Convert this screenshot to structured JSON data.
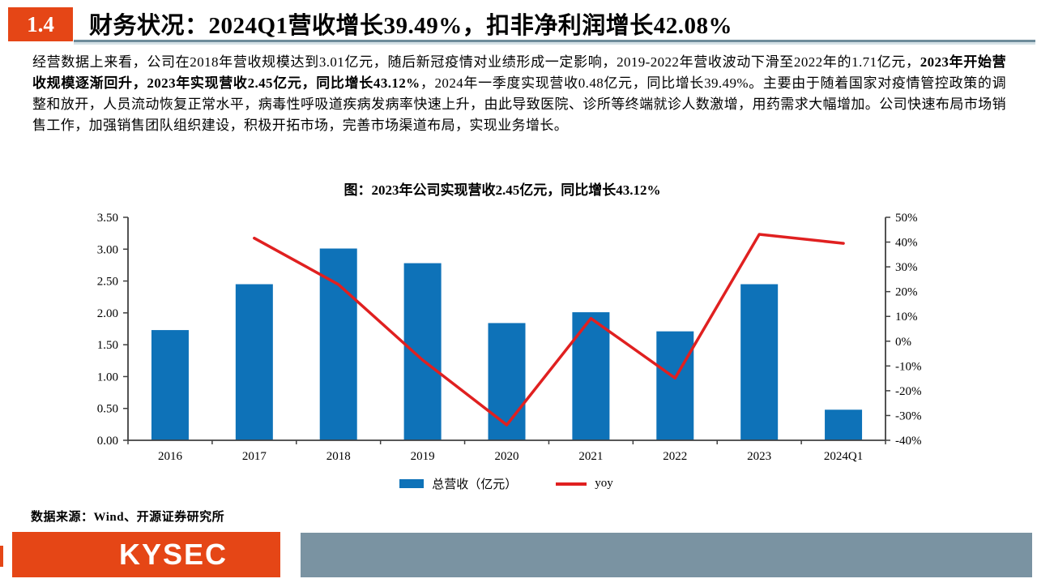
{
  "header": {
    "section_number": "1.4",
    "title": "财务状况：2024Q1营收增长39.49%，扣非净利润增长42.08%"
  },
  "body": {
    "part1": "经营数据上来看，公司在2018年营收规模达到3.01亿元，随后新冠疫情对业绩形成一定影响，2019-2022年营收波动下滑至2022年的1.71亿元，",
    "part2_bold": "2023年开始营收规模逐渐回升，2023年实现营收2.45亿元，同比增长43.12%",
    "part3": "，2024年一季度实现营收0.48亿元，同比增长39.49%。主要由于随着国家对疫情管控政策的调整和放开，人员流动恢复正常水平，病毒性呼吸道疾病发病率快速上升，由此导致医院、诊所等终端就诊人数激增，用药需求大幅增加。公司快速布局市场销售工作，加强销售团队组织建设，积极开拓市场，完善市场渠道布局，实现业务增长。"
  },
  "chart_data": {
    "type": "combo_bar_line",
    "title": "图：2023年公司实现营收2.45亿元，同比增长43.12%",
    "categories": [
      "2016",
      "2017",
      "2018",
      "2019",
      "2020",
      "2021",
      "2022",
      "2023",
      "2024Q1"
    ],
    "series": [
      {
        "name": "总营收（亿元）",
        "type": "bar",
        "axis": "left",
        "color": "#0E72B8",
        "values": [
          1.73,
          2.45,
          3.01,
          2.78,
          1.84,
          2.01,
          1.71,
          2.45,
          0.48
        ]
      },
      {
        "name": "yoy",
        "type": "line",
        "axis": "right",
        "color": "#E02020",
        "values": [
          null,
          41.6,
          22.9,
          -7.6,
          -33.8,
          9.2,
          -14.9,
          43.12,
          39.49
        ]
      }
    ],
    "left_axis": {
      "min": 0,
      "max": 3.5,
      "step": 0.5,
      "decimals": 2
    },
    "right_axis": {
      "min": -40,
      "max": 50,
      "step": 10,
      "suffix": "%"
    },
    "grid": false,
    "legend_position": "bottom",
    "axis_color": "#404040"
  },
  "source": {
    "label": "数据来源：Wind、开源证券研究所"
  },
  "footer": {
    "logo_text": "KYSEC"
  },
  "colors": {
    "accent_orange": "#E54616",
    "bar_blue": "#0E72B8",
    "line_red": "#E02020",
    "footer_slate": "#7A93A2",
    "header_rule": "#6E8C9B"
  }
}
